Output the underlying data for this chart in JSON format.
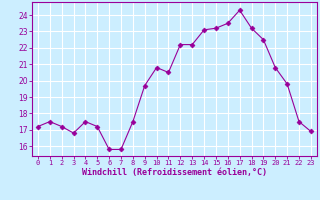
{
  "x": [
    0,
    1,
    2,
    3,
    4,
    5,
    6,
    7,
    8,
    9,
    10,
    11,
    12,
    13,
    14,
    15,
    16,
    17,
    18,
    19,
    20,
    21,
    22,
    23
  ],
  "y": [
    17.2,
    17.5,
    17.2,
    16.8,
    17.5,
    17.2,
    15.8,
    15.8,
    17.5,
    19.7,
    20.8,
    20.5,
    22.2,
    22.2,
    23.1,
    23.2,
    23.5,
    24.3,
    23.2,
    22.5,
    20.8,
    19.8,
    17.5,
    16.9
  ],
  "line_color": "#990099",
  "marker": "D",
  "marker_size": 2.5,
  "bg_color": "#cceeff",
  "grid_color": "#ffffff",
  "ylabel_ticks": [
    16,
    17,
    18,
    19,
    20,
    21,
    22,
    23,
    24
  ],
  "ylim": [
    15.4,
    24.8
  ],
  "xlim": [
    -0.5,
    23.5
  ],
  "xlabel": "Windchill (Refroidissement éolien,°C)",
  "xlabel_color": "#990099",
  "tick_color": "#990099",
  "tick_label_color": "#990099"
}
